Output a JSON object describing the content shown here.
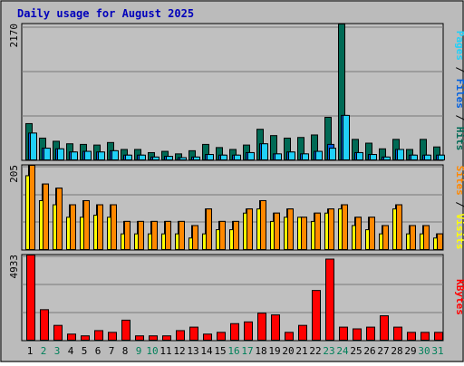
{
  "title": "Daily usage for August 2025",
  "colors": {
    "frame_bg": "#bbbbbb",
    "plot_bg": "#c0c0c0",
    "title": "#0000bb",
    "hits": "#006a55",
    "files": "#0060e0",
    "pages": "#20d0f8",
    "visits": "#ffff00",
    "sites": "#ff8800",
    "kbytes": "#ff0000",
    "weekend": "#00805a",
    "weekday": "#000000"
  },
  "chart_data": [
    {
      "type": "bar",
      "name": "hits-files-pages",
      "categories": [
        "1",
        "2",
        "3",
        "4",
        "5",
        "6",
        "7",
        "8",
        "9",
        "10",
        "11",
        "12",
        "13",
        "14",
        "15",
        "16",
        "17",
        "18",
        "19",
        "20",
        "21",
        "22",
        "23",
        "24",
        "25",
        "26",
        "27",
        "28",
        "29",
        "30",
        "31"
      ],
      "y_max_label": "2170",
      "ylim": [
        0,
        2170
      ],
      "legend": [
        {
          "text": "Hits",
          "color_key": "hits"
        },
        {
          "text": "Files",
          "color_key": "files"
        },
        {
          "text": "Pages",
          "color_key": "pages"
        }
      ],
      "series": [
        {
          "name": "Hits",
          "values": [
            590,
            360,
            310,
            270,
            260,
            250,
            290,
            180,
            180,
            130,
            150,
            110,
            160,
            260,
            210,
            180,
            250,
            500,
            400,
            360,
            370,
            410,
            690,
            2170,
            340,
            280,
            190,
            340,
            180,
            340,
            220
          ]
        },
        {
          "name": "Files",
          "values": [
            440,
            200,
            190,
            140,
            150,
            140,
            160,
            90,
            90,
            60,
            70,
            50,
            60,
            100,
            90,
            90,
            130,
            270,
            110,
            140,
            110,
            150,
            260,
            720,
            130,
            100,
            60,
            180,
            90,
            90,
            90
          ]
        },
        {
          "name": "Pages",
          "values": [
            440,
            200,
            190,
            140,
            150,
            140,
            160,
            90,
            90,
            60,
            70,
            50,
            60,
            100,
            90,
            90,
            130,
            270,
            110,
            140,
            110,
            150,
            200,
            720,
            130,
            100,
            60,
            180,
            90,
            90,
            90
          ]
        }
      ]
    },
    {
      "type": "bar",
      "name": "visits-sites",
      "categories": [
        "1",
        "2",
        "3",
        "4",
        "5",
        "6",
        "7",
        "8",
        "9",
        "10",
        "11",
        "12",
        "13",
        "14",
        "15",
        "16",
        "17",
        "18",
        "19",
        "20",
        "21",
        "22",
        "23",
        "24",
        "25",
        "26",
        "27",
        "28",
        "29",
        "30",
        "31"
      ],
      "y_max_label": "205",
      "ylim": [
        0,
        205
      ],
      "legend": [
        {
          "text": "Visits",
          "color_key": "visits"
        },
        {
          "text": "Sites",
          "color_key": "sites"
        }
      ],
      "series": [
        {
          "name": "Visits",
          "values": [
            180,
            120,
            110,
            80,
            80,
            85,
            80,
            40,
            40,
            40,
            40,
            40,
            30,
            40,
            50,
            50,
            90,
            100,
            70,
            80,
            80,
            70,
            90,
            100,
            60,
            50,
            40,
            100,
            40,
            40,
            30
          ]
        },
        {
          "name": "Sites",
          "values": [
            205,
            160,
            150,
            110,
            120,
            110,
            110,
            70,
            70,
            70,
            70,
            70,
            60,
            100,
            70,
            70,
            100,
            120,
            90,
            100,
            80,
            90,
            100,
            110,
            80,
            80,
            60,
            110,
            60,
            60,
            40
          ]
        }
      ]
    },
    {
      "type": "bar",
      "name": "kbytes",
      "categories": [
        "1",
        "2",
        "3",
        "4",
        "5",
        "6",
        "7",
        "8",
        "9",
        "10",
        "11",
        "12",
        "13",
        "14",
        "15",
        "16",
        "17",
        "18",
        "19",
        "20",
        "21",
        "22",
        "23",
        "24",
        "25",
        "26",
        "27",
        "28",
        "29",
        "30",
        "31"
      ],
      "y_max_label": "4933",
      "ylim": [
        0,
        4933
      ],
      "legend": [
        {
          "text": "KBytes",
          "color_key": "kbytes"
        }
      ],
      "series": [
        {
          "name": "KBytes",
          "values": [
            4933,
            1800,
            900,
            400,
            300,
            600,
            500,
            1200,
            300,
            300,
            300,
            600,
            800,
            400,
            500,
            1000,
            1100,
            1600,
            1500,
            500,
            900,
            2900,
            4700,
            800,
            700,
            800,
            1450,
            800,
            500,
            500,
            500
          ]
        }
      ]
    }
  ],
  "x_axis": {
    "labels": [
      "1",
      "2",
      "3",
      "4",
      "5",
      "6",
      "7",
      "8",
      "9",
      "10",
      "11",
      "12",
      "13",
      "14",
      "15",
      "16",
      "17",
      "18",
      "19",
      "20",
      "21",
      "22",
      "23",
      "24",
      "25",
      "26",
      "27",
      "28",
      "29",
      "30",
      "31"
    ],
    "weekend_days": [
      "2",
      "3",
      "9",
      "10",
      "16",
      "17",
      "23",
      "24",
      "30",
      "31"
    ]
  }
}
